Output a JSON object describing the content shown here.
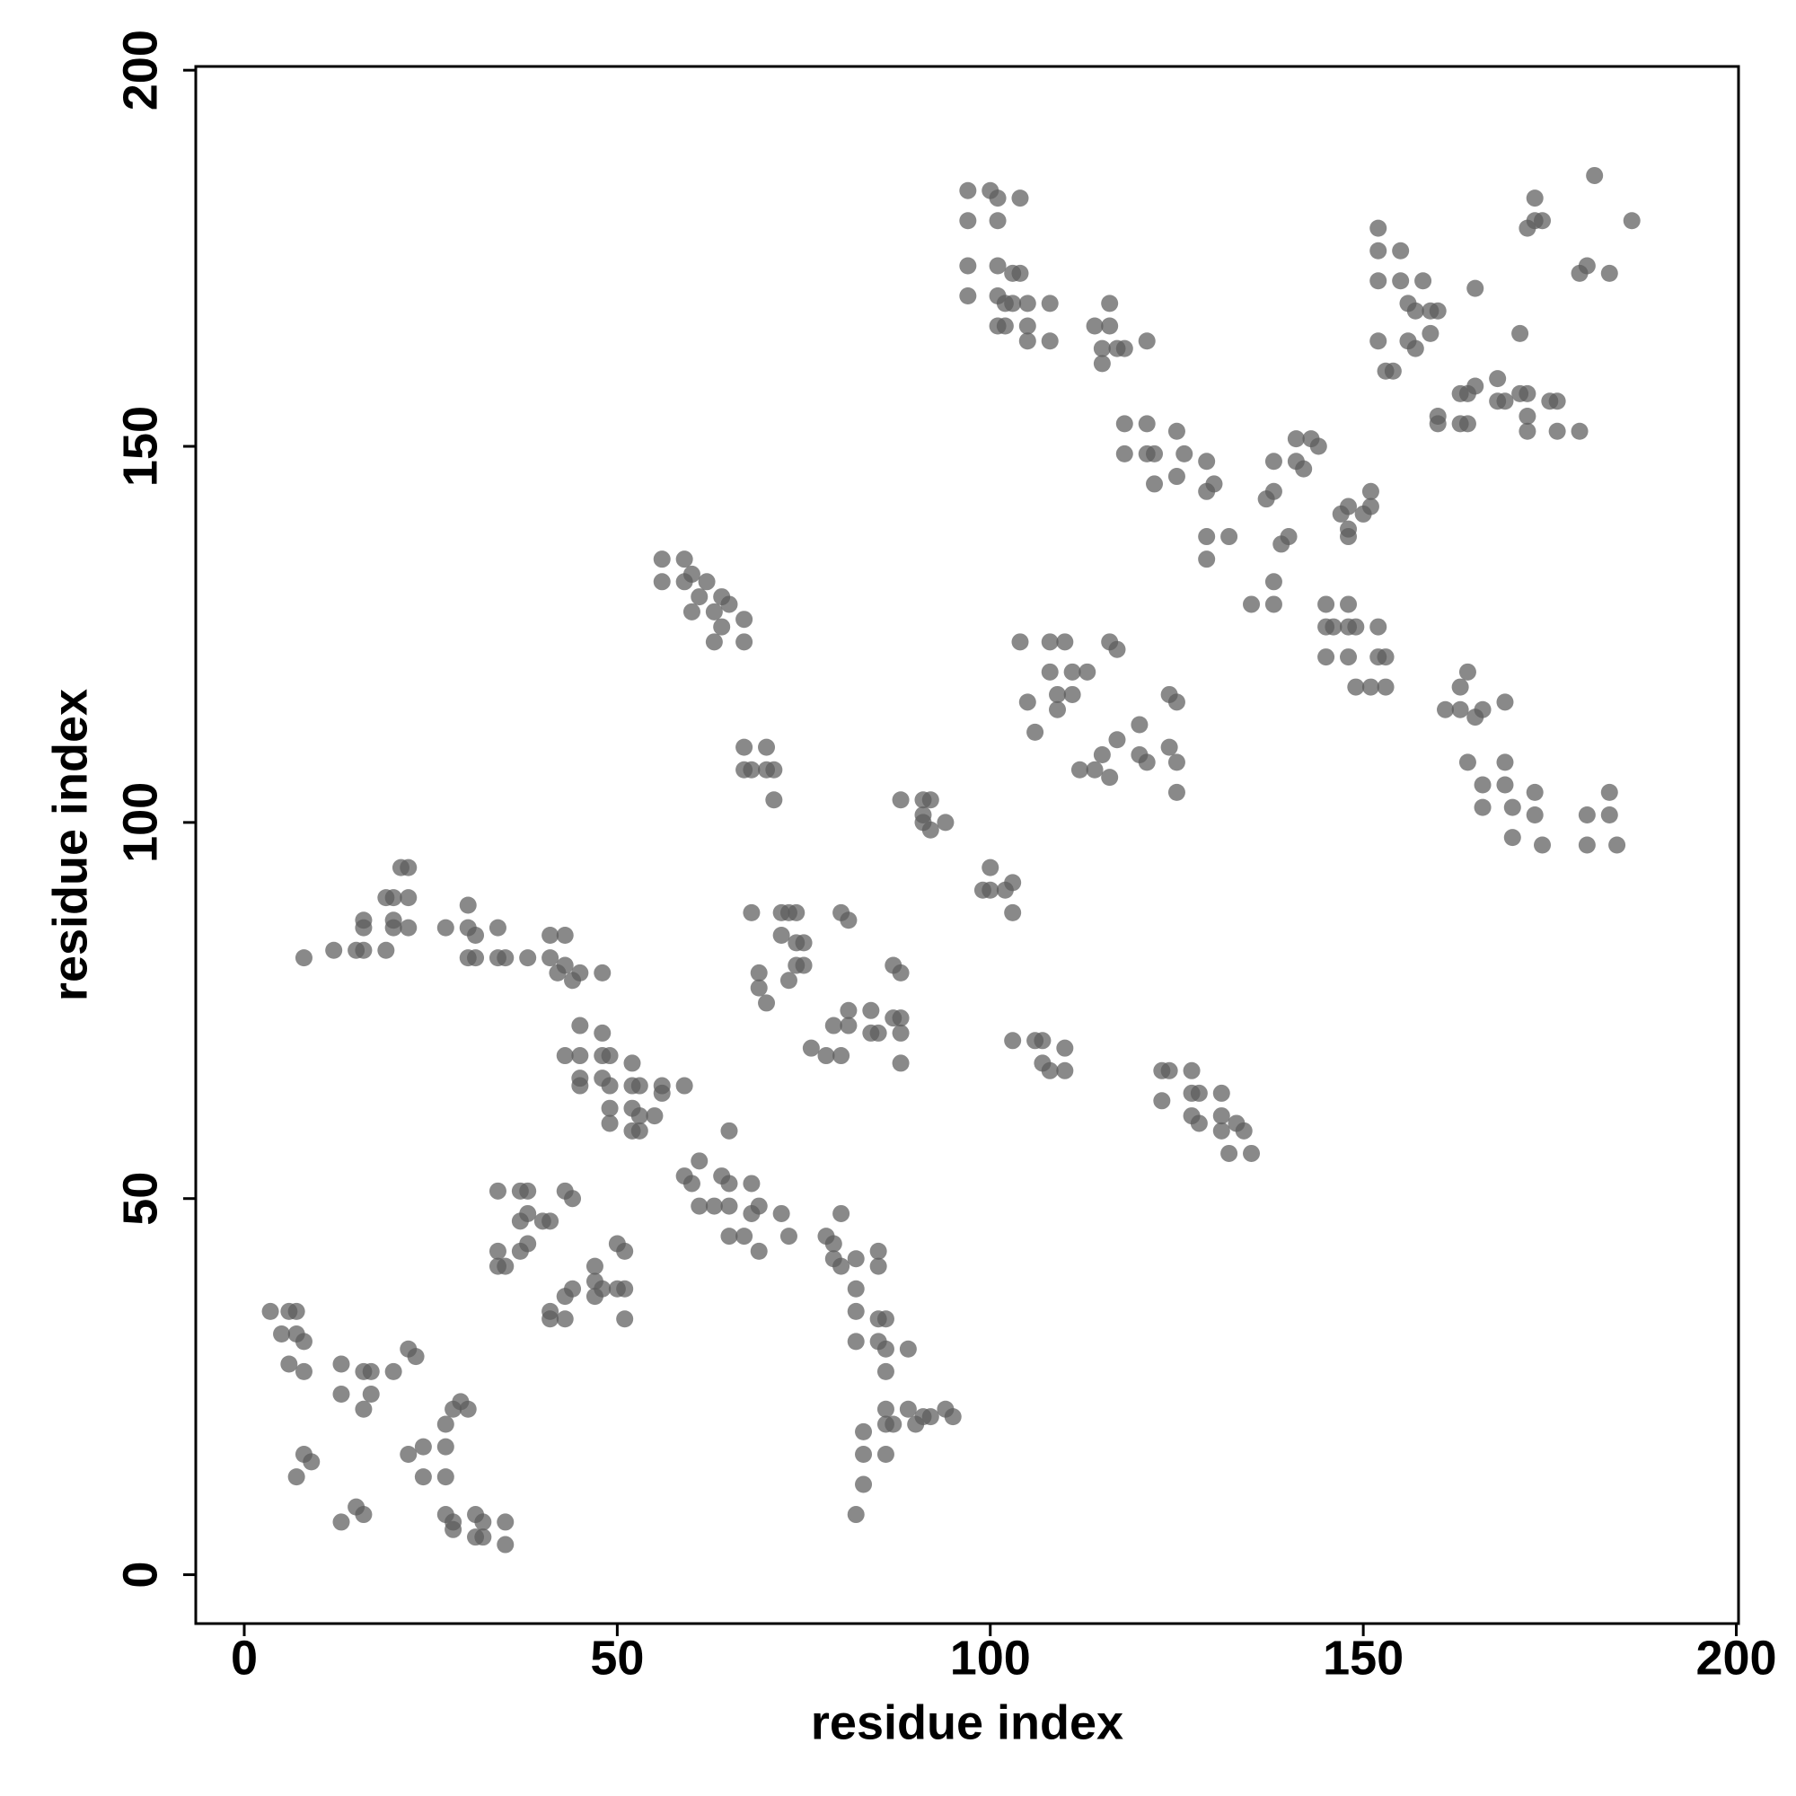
{
  "chart_data": {
    "type": "scatter",
    "xlabel": "residue index",
    "ylabel": "residue index",
    "color": "#5c5c5c",
    "xlim": [
      -6.5,
      200.3
    ],
    "ylim": [
      -6.5,
      200.5
    ],
    "xticks": [
      0,
      50,
      100,
      150,
      200
    ],
    "yticks": [
      0,
      50,
      100,
      150,
      200
    ],
    "x": [
      3.5,
      6,
      7,
      5,
      7,
      8,
      6,
      8,
      13,
      13,
      16,
      17,
      16,
      17,
      20,
      22,
      23,
      8,
      9,
      7,
      13,
      15,
      16,
      22,
      24,
      24,
      27,
      27,
      27,
      28,
      29,
      30,
      27,
      28,
      28,
      31,
      31,
      32,
      32,
      35,
      35,
      34,
      37,
      38,
      37,
      38,
      40,
      41,
      34,
      34,
      35,
      37,
      38,
      43,
      44,
      41,
      41,
      43,
      43,
      44,
      47,
      47,
      47,
      48,
      50,
      51,
      50,
      51,
      51,
      45,
      43,
      45,
      45,
      45,
      48,
      48,
      49,
      48,
      49,
      49,
      49,
      52,
      52,
      53,
      52,
      53,
      52,
      53,
      55,
      56,
      56,
      59,
      65,
      59,
      61,
      60,
      61,
      63,
      64,
      65,
      65,
      65,
      67,
      68,
      68,
      69,
      69,
      72,
      73,
      78,
      79,
      80,
      79,
      80,
      82,
      82,
      82,
      82,
      85,
      85,
      85,
      86,
      85,
      86,
      86,
      89,
      83,
      83,
      83,
      82,
      86,
      86,
      86,
      87,
      89,
      90,
      91,
      94,
      95,
      92,
      8,
      12,
      15,
      16,
      16,
      16,
      19,
      19,
      20,
      20,
      21,
      22,
      22,
      22,
      20,
      27,
      30,
      30,
      31,
      30,
      31,
      34,
      34,
      35,
      38,
      41,
      43,
      41,
      42,
      43,
      44,
      45,
      48,
      56,
      56,
      59,
      59,
      60,
      61,
      62,
      64,
      63,
      60,
      64,
      63,
      67,
      67,
      65,
      67,
      67,
      70,
      70,
      71,
      71,
      68,
      68,
      72,
      73,
      74,
      72,
      74,
      75,
      69,
      69,
      70,
      73,
      74,
      75,
      80,
      81,
      76,
      78,
      80,
      79,
      81,
      81,
      84,
      84,
      85,
      87,
      88,
      88,
      88,
      87,
      88,
      88,
      91,
      92,
      91,
      92,
      94,
      91,
      100,
      99,
      100,
      103,
      103,
      102,
      103,
      106,
      107,
      107,
      108,
      110,
      110,
      123,
      124,
      123,
      127,
      127,
      127,
      128,
      128,
      131,
      131,
      131,
      132,
      133,
      134,
      135,
      97,
      97,
      100,
      101,
      104,
      101,
      97,
      97,
      101,
      101,
      103,
      104,
      102,
      103,
      105,
      101,
      102,
      105,
      108,
      105,
      108,
      114,
      116,
      116,
      115,
      117,
      118,
      121,
      115,
      118,
      121,
      118,
      121,
      122,
      125,
      122,
      125,
      126,
      129,
      129,
      130,
      129,
      129,
      132,
      135,
      138,
      138,
      137,
      138,
      138,
      141,
      141,
      142,
      143,
      144,
      139,
      140,
      145,
      145,
      146,
      145,
      148,
      148,
      148,
      149,
      149,
      152,
      152,
      153,
      153,
      151,
      148,
      148,
      148,
      147,
      151,
      151,
      150,
      152,
      152,
      152,
      152,
      153,
      154,
      155,
      155,
      156,
      157,
      158,
      159,
      160,
      156,
      157,
      159,
      165,
      160,
      160,
      163,
      163,
      164,
      165,
      164,
      168,
      168,
      169,
      171,
      172,
      172,
      175,
      176,
      172,
      176,
      179,
      171,
      181,
      173,
      173,
      174,
      172,
      179,
      180,
      183,
      186,
      161,
      163,
      164,
      163,
      165,
      166,
      169,
      164,
      166,
      169,
      166,
      169,
      170,
      170,
      173,
      173,
      174,
      180,
      180,
      183,
      183,
      184,
      104,
      108,
      110,
      108,
      111,
      113,
      105,
      106,
      109,
      109,
      111,
      116,
      117,
      112,
      114,
      116,
      115,
      117,
      120,
      120,
      121,
      124,
      125,
      125,
      125,
      124
    ],
    "y": [
      35,
      35,
      35,
      32,
      32,
      31,
      28,
      27,
      28,
      24,
      27,
      27,
      22,
      24,
      27,
      30,
      29,
      16,
      15,
      13,
      7,
      9,
      8,
      16,
      17,
      13,
      20,
      17,
      13,
      22,
      23,
      22,
      8,
      7,
      6,
      8,
      5,
      7,
      5,
      7,
      4,
      51,
      51,
      51,
      47,
      48,
      47,
      47,
      43,
      41,
      41,
      43,
      44,
      51,
      50,
      35,
      34,
      34,
      37,
      38,
      41,
      39,
      37,
      38,
      44,
      43,
      38,
      38,
      34,
      73,
      69,
      69,
      66,
      65,
      72,
      69,
      69,
      66,
      65,
      62,
      60,
      68,
      65,
      65,
      62,
      61,
      59,
      59,
      61,
      65,
      64,
      65,
      59,
      53,
      55,
      52,
      49,
      49,
      53,
      52,
      49,
      45,
      45,
      52,
      48,
      49,
      43,
      48,
      45,
      45,
      44,
      48,
      42,
      41,
      42,
      38,
      35,
      31,
      43,
      41,
      34,
      34,
      31,
      30,
      27,
      30,
      19,
      16,
      12,
      8,
      22,
      20,
      16,
      20,
      22,
      20,
      21,
      22,
      21,
      21,
      82,
      83,
      83,
      83,
      86,
      87,
      83,
      90,
      87,
      86,
      94,
      94,
      90,
      86,
      90,
      86,
      89,
      86,
      85,
      82,
      82,
      86,
      82,
      82,
      82,
      85,
      85,
      82,
      80,
      81,
      79,
      80,
      80,
      135,
      132,
      135,
      132,
      133,
      130,
      132,
      130,
      128,
      128,
      126,
      124,
      127,
      124,
      129,
      110,
      107,
      110,
      107,
      107,
      103,
      107,
      88,
      88,
      88,
      88,
      85,
      84,
      84,
      80,
      78,
      76,
      79,
      81,
      81,
      88,
      87,
      70,
      69,
      69,
      73,
      75,
      73,
      75,
      72,
      72,
      74,
      72,
      74,
      68,
      81,
      80,
      103,
      103,
      103,
      100,
      99,
      100,
      101,
      94,
      91,
      91,
      92,
      88,
      91,
      71,
      71,
      71,
      68,
      67,
      70,
      67,
      67,
      67,
      63,
      67,
      64,
      61,
      64,
      60,
      64,
      61,
      59,
      56,
      60,
      59,
      56,
      184,
      180,
      184,
      183,
      183,
      180,
      174,
      170,
      174,
      170,
      173,
      173,
      169,
      169,
      169,
      166,
      166,
      166,
      169,
      164,
      164,
      166,
      166,
      169,
      163,
      163,
      163,
      164,
      161,
      153,
      153,
      149,
      149,
      149,
      152,
      145,
      146,
      149,
      148,
      144,
      145,
      138,
      135,
      138,
      129,
      132,
      129,
      143,
      144,
      148,
      148,
      151,
      147,
      151,
      150,
      137,
      138,
      129,
      126,
      126,
      122,
      126,
      129,
      122,
      126,
      118,
      126,
      122,
      122,
      118,
      118,
      142,
      139,
      138,
      141,
      142,
      144,
      141,
      179,
      176,
      172,
      164,
      160,
      160,
      176,
      172,
      169,
      168,
      172,
      168,
      168,
      164,
      163,
      165,
      171,
      154,
      153,
      157,
      153,
      153,
      158,
      157,
      159,
      156,
      156,
      157,
      157,
      154,
      156,
      156,
      152,
      152,
      152,
      165,
      186,
      183,
      180,
      180,
      179,
      173,
      174,
      173,
      180,
      115,
      118,
      120,
      115,
      114,
      115,
      116,
      108,
      105,
      108,
      102,
      105,
      102,
      98,
      104,
      101,
      97,
      101,
      97,
      104,
      101,
      97,
      124,
      124,
      124,
      120,
      120,
      120,
      116,
      112,
      117,
      115,
      117,
      124,
      123,
      107,
      107,
      106,
      109,
      111,
      113,
      109,
      108,
      117,
      116,
      108,
      104,
      110
    ]
  }
}
